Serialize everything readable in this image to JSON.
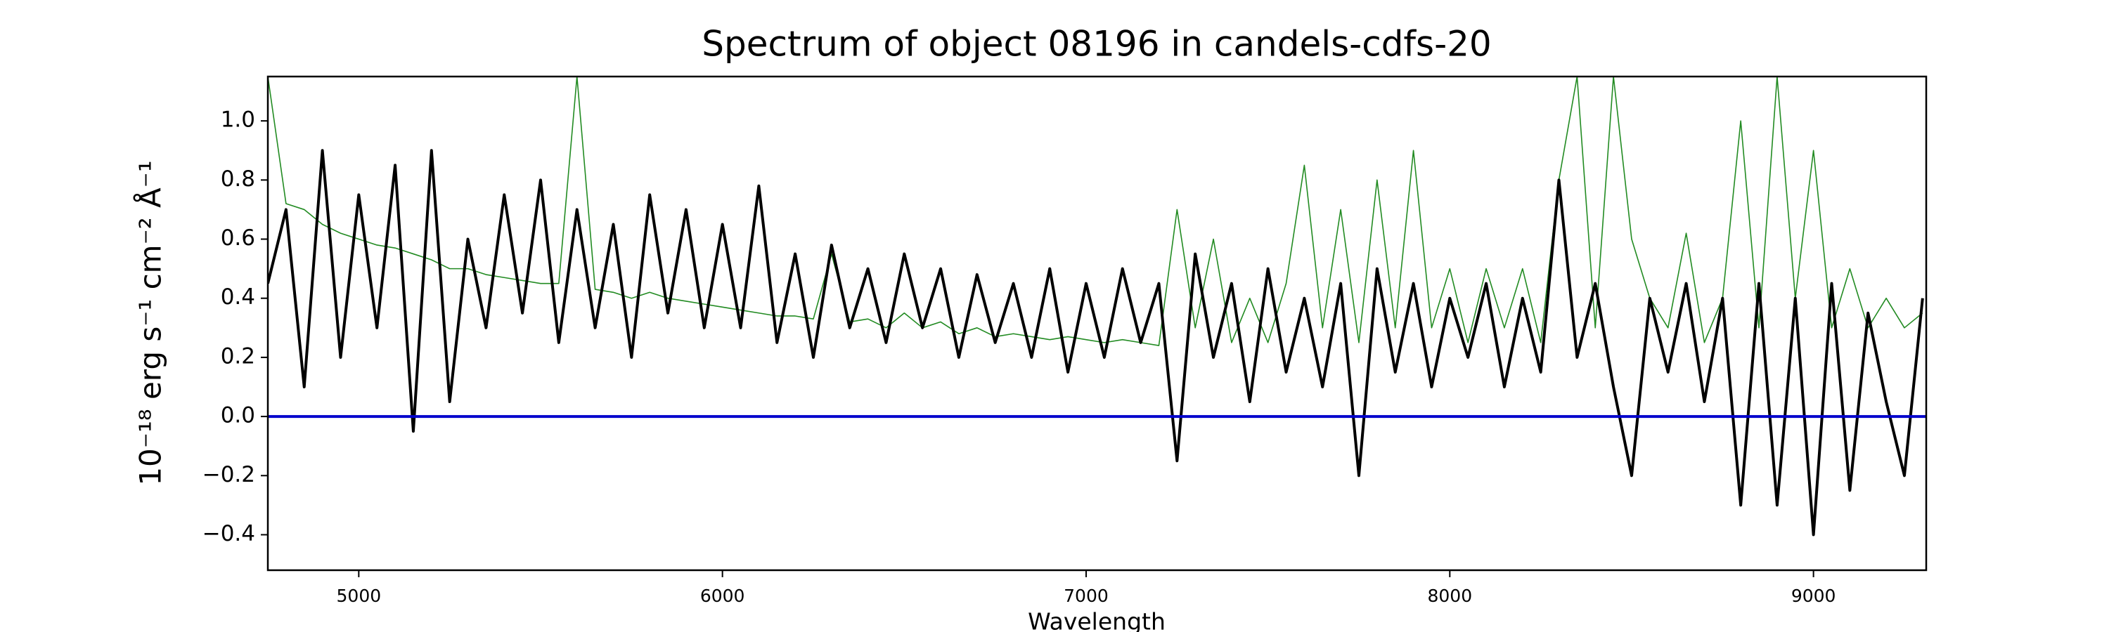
{
  "chart_data": {
    "type": "line",
    "title": "Spectrum of object 08196 in candels-cdfs-20",
    "xlabel": "Wavelength",
    "ylabel": "10⁻¹⁸ erg s⁻¹ cm⁻² Å⁻¹",
    "xlim": [
      4750,
      9310
    ],
    "ylim": [
      -0.52,
      1.15
    ],
    "xticks": [
      5000,
      6000,
      7000,
      8000,
      9000
    ],
    "yticks": [
      {
        "value": -0.4,
        "label": "−0.4"
      },
      {
        "value": -0.2,
        "label": "−0.2"
      },
      {
        "value": 0,
        "label": "0.0"
      },
      0.2,
      0.4,
      0.6,
      0.8,
      {
        "value": 1,
        "label": "1.0"
      }
    ],
    "grid": false,
    "x": [
      4750,
      4800,
      4850,
      4900,
      4950,
      5000,
      5050,
      5100,
      5150,
      5200,
      5250,
      5300,
      5350,
      5400,
      5450,
      5500,
      5550,
      5600,
      5650,
      5700,
      5750,
      5800,
      5850,
      5900,
      5950,
      6000,
      6050,
      6100,
      6150,
      6200,
      6250,
      6300,
      6350,
      6400,
      6450,
      6500,
      6550,
      6600,
      6650,
      6700,
      6750,
      6800,
      6850,
      6900,
      6950,
      7000,
      7050,
      7100,
      7150,
      7200,
      7250,
      7300,
      7350,
      7400,
      7450,
      7500,
      7550,
      7600,
      7650,
      7700,
      7750,
      7800,
      7850,
      7900,
      7950,
      8000,
      8050,
      8100,
      8150,
      8200,
      8250,
      8300,
      8350,
      8400,
      8450,
      8500,
      8550,
      8600,
      8650,
      8700,
      8750,
      8800,
      8850,
      8900,
      8950,
      9000,
      9050,
      9100,
      9150,
      9200,
      9250,
      9300
    ],
    "series": [
      {
        "color": "#228b22",
        "width": 1.6,
        "values": [
          1.15,
          0.72,
          0.7,
          0.65,
          0.62,
          0.6,
          0.58,
          0.57,
          0.55,
          0.53,
          0.5,
          0.5,
          0.48,
          0.47,
          0.46,
          0.45,
          0.45,
          1.15,
          0.43,
          0.42,
          0.4,
          0.42,
          0.4,
          0.39,
          0.38,
          0.37,
          0.36,
          0.35,
          0.34,
          0.34,
          0.33,
          0.55,
          0.32,
          0.33,
          0.3,
          0.35,
          0.3,
          0.32,
          0.28,
          0.3,
          0.27,
          0.28,
          0.27,
          0.26,
          0.27,
          0.26,
          0.25,
          0.26,
          0.25,
          0.24,
          0.7,
          0.3,
          0.6,
          0.25,
          0.4,
          0.25,
          0.45,
          0.85,
          0.3,
          0.7,
          0.25,
          0.8,
          0.3,
          0.9,
          0.3,
          0.5,
          0.25,
          0.5,
          0.3,
          0.5,
          0.25,
          0.8,
          1.15,
          0.3,
          1.15,
          0.6,
          0.4,
          0.3,
          0.62,
          0.25,
          0.4,
          1.0,
          0.3,
          1.15,
          0.4,
          0.9,
          0.3,
          0.5,
          0.3,
          0.4,
          0.3,
          0.35
        ]
      },
      {
        "color": "#000000",
        "width": 4,
        "values": [
          0.45,
          0.7,
          0.1,
          0.9,
          0.2,
          0.75,
          0.3,
          0.85,
          -0.05,
          0.9,
          0.05,
          0.6,
          0.3,
          0.75,
          0.35,
          0.8,
          0.25,
          0.7,
          0.3,
          0.65,
          0.2,
          0.75,
          0.35,
          0.7,
          0.3,
          0.65,
          0.3,
          0.78,
          0.25,
          0.55,
          0.2,
          0.58,
          0.3,
          0.5,
          0.25,
          0.55,
          0.3,
          0.5,
          0.2,
          0.48,
          0.25,
          0.45,
          0.2,
          0.5,
          0.15,
          0.45,
          0.2,
          0.5,
          0.25,
          0.45,
          -0.15,
          0.55,
          0.2,
          0.45,
          0.05,
          0.5,
          0.15,
          0.4,
          0.1,
          0.45,
          -0.2,
          0.5,
          0.15,
          0.45,
          0.1,
          0.4,
          0.2,
          0.45,
          0.1,
          0.4,
          0.15,
          0.8,
          0.2,
          0.45,
          0.1,
          -0.2,
          0.4,
          0.15,
          0.45,
          0.05,
          0.4,
          -0.3,
          0.45,
          -0.3,
          0.4,
          -0.4,
          0.45,
          -0.25,
          0.35,
          0.05,
          -0.2,
          0.4
        ]
      },
      {
        "color": "#0000cc",
        "width": 4,
        "x": [
          4750,
          9310
        ],
        "values": [
          0,
          0
        ]
      }
    ]
  }
}
